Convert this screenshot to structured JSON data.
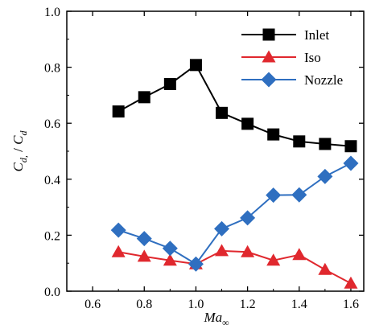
{
  "chart_data": {
    "type": "line",
    "title": "",
    "xlabel": "Ma",
    "xlabel_subscript": "∞",
    "ylabel": "C",
    "ylabel_subscript": "d,",
    "ylabel_separator": " / ",
    "ylabel_denominator": "C",
    "ylabel_denominator_subscript": "d",
    "xlim": [
      0.5,
      1.65
    ],
    "ylim": [
      0.0,
      1.0
    ],
    "xticks": [
      0.6,
      0.8,
      1.0,
      1.2,
      1.4,
      1.6
    ],
    "xtick_labels": [
      "0.6",
      "0.8",
      "1.0",
      "1.2",
      "1.4",
      "1.6"
    ],
    "yticks": [
      0.0,
      0.2,
      0.4,
      0.6,
      0.8,
      1.0
    ],
    "ytick_labels": [
      "0.0",
      "0.2",
      "0.4",
      "0.6",
      "0.8",
      "1.0"
    ],
    "grid": false,
    "legend_position": "top-right",
    "x": [
      0.7,
      0.8,
      0.9,
      1.0,
      1.1,
      1.2,
      1.3,
      1.4,
      1.5,
      1.6
    ],
    "series": [
      {
        "name": "Inlet",
        "color": "#000000",
        "marker": "square",
        "values": [
          0.642,
          0.693,
          0.74,
          0.808,
          0.637,
          0.598,
          0.56,
          0.535,
          0.526,
          0.518
        ]
      },
      {
        "name": "Iso",
        "color": "#e0282e",
        "marker": "triangle",
        "values": [
          0.14,
          0.124,
          0.11,
          0.097,
          0.144,
          0.14,
          0.11,
          0.13,
          0.077,
          0.028
        ]
      },
      {
        "name": "Nozzle",
        "color": "#2f6fc0",
        "marker": "diamond",
        "values": [
          0.218,
          0.188,
          0.153,
          0.097,
          0.223,
          0.262,
          0.343,
          0.344,
          0.41,
          0.457
        ]
      }
    ]
  }
}
